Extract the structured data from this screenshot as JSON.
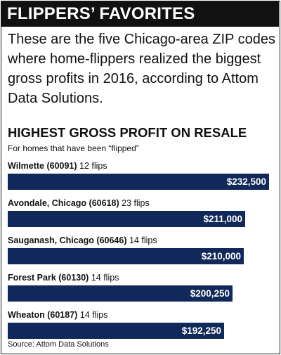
{
  "header": {
    "title": "FLIPPERS’ FAVORITES"
  },
  "intro": "These are the five Chicago-area ZIP codes where home-flippers realized the biggest gross profits in 2016, according to Attom Data Solutions.",
  "source": "Source: Attom Data Solutions",
  "chart_data": {
    "type": "bar",
    "orientation": "horizontal",
    "title": "HIGHEST GROSS PROFIT ON RESALE",
    "subtitle": "For homes that have been “flipped”",
    "categories": [
      "Wilmette (60091)",
      "Avondale, Chicago (60618)",
      "Sauganash, Chicago (60646)",
      "Forest Park (60130)",
      "Wheaton (60187)"
    ],
    "flips": [
      "12 flips",
      "23 flips",
      "14 flips",
      "14 flips",
      "14 flips"
    ],
    "values": [
      232500,
      211000,
      210000,
      200250,
      192250
    ],
    "value_labels": [
      "$232,500",
      "$211,000",
      "$210,000",
      "$200,250",
      "$192,250"
    ],
    "xlim": [
      0,
      232500
    ],
    "grid": false,
    "bar_color": "#11285a"
  }
}
